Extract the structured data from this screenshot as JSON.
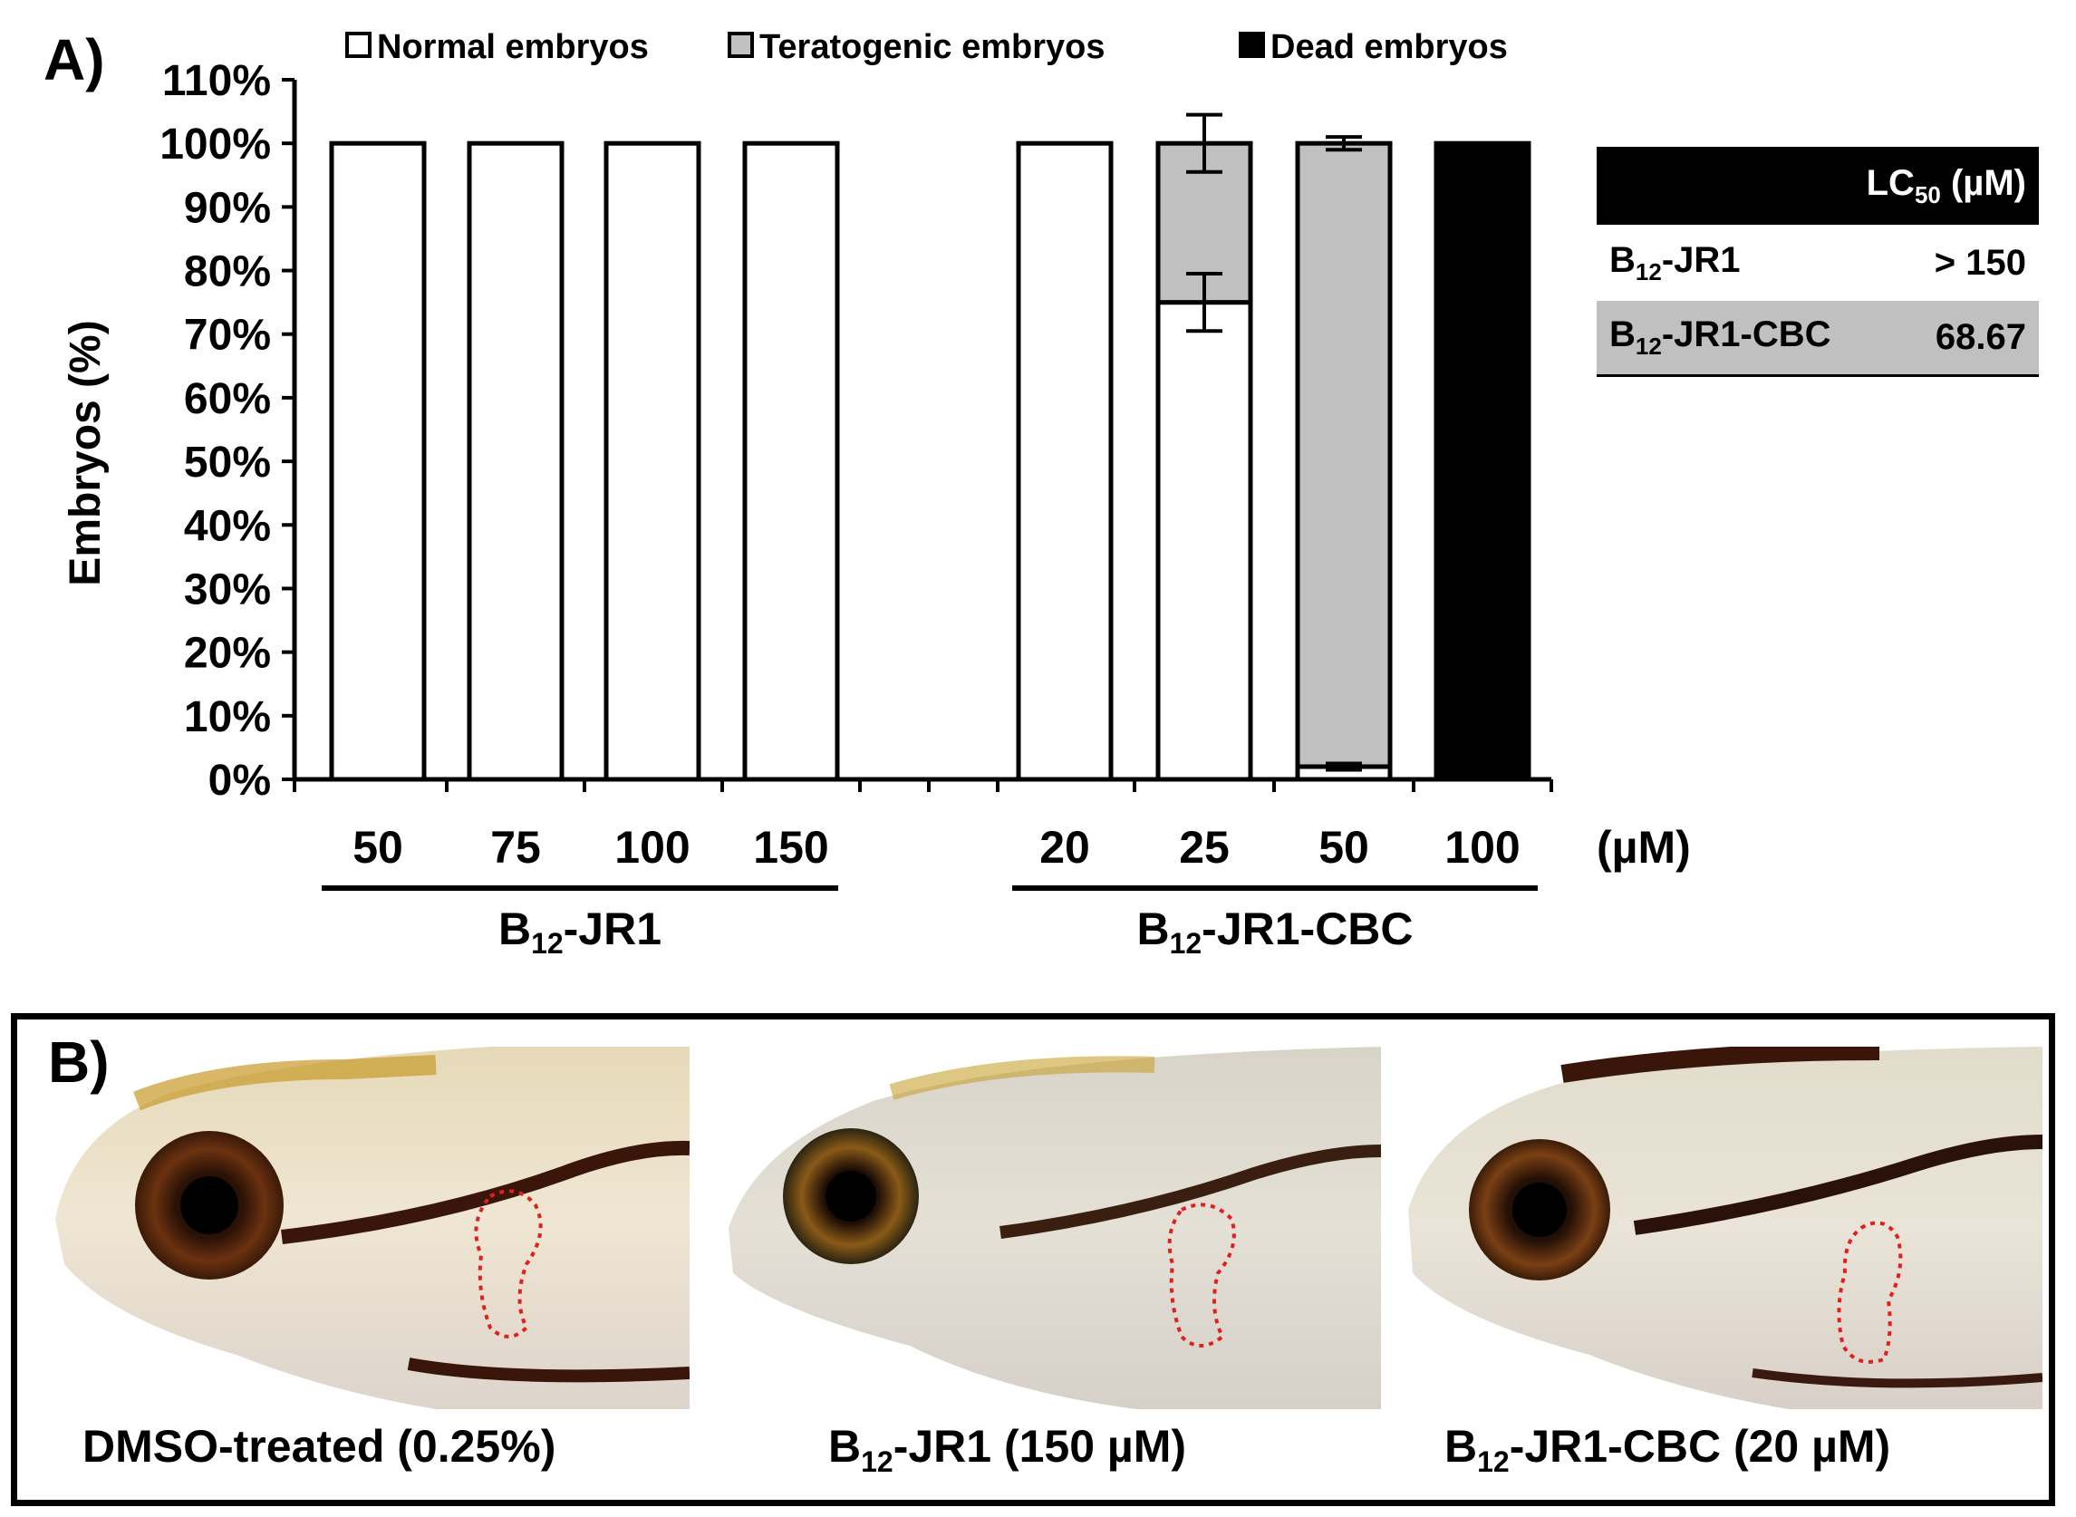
{
  "panel_a": {
    "label": "A)",
    "legend": [
      {
        "label": "Normal embryos",
        "color": "#ffffff"
      },
      {
        "label": "Teratogenic embryos",
        "color": "#c0c0c0"
      },
      {
        "label": "Dead embryos",
        "color": "#000000"
      }
    ],
    "unit_label": "(µM)",
    "group_labels": [
      {
        "base": "B",
        "sub": "12",
        "rest": "-JR1"
      },
      {
        "base": "B",
        "sub": "12",
        "rest": "-JR1-CBC"
      }
    ],
    "lc50_table": {
      "header": {
        "base": "LC",
        "sub": "50",
        "rest": " (µM)"
      },
      "rows": [
        {
          "name": {
            "base": "B",
            "sub": "12",
            "rest": "-JR1"
          },
          "value": "> 150"
        },
        {
          "name": {
            "base": "B",
            "sub": "12",
            "rest": "-JR1-CBC"
          },
          "value": "68.67"
        }
      ]
    }
  },
  "chart_data": {
    "type": "bar",
    "stacked": true,
    "title": "",
    "xlabel": "",
    "ylabel": "Embryos (%)",
    "ylim": [
      0,
      110
    ],
    "yticks": [
      "0%",
      "10%",
      "20%",
      "30%",
      "40%",
      "50%",
      "60%",
      "70%",
      "80%",
      "90%",
      "100%",
      "110%"
    ],
    "categories": [
      "50",
      "75",
      "100",
      "150",
      "20",
      "25",
      "50",
      "100"
    ],
    "groups": [
      "B12-JR1",
      "B12-JR1",
      "B12-JR1",
      "B12-JR1",
      "B12-JR1-CBC",
      "B12-JR1-CBC",
      "B12-JR1-CBC",
      "B12-JR1-CBC"
    ],
    "series": [
      {
        "name": "Normal embryos",
        "color": "#ffffff",
        "values": [
          100,
          100,
          100,
          100,
          100,
          75,
          2,
          0
        ],
        "errors": [
          0,
          0,
          0,
          0,
          0,
          4.5,
          0.5,
          0
        ]
      },
      {
        "name": "Teratogenic embryos",
        "color": "#c0c0c0",
        "values": [
          0,
          0,
          0,
          0,
          0,
          25,
          98,
          0
        ],
        "errors": [
          0,
          0,
          0,
          0,
          0,
          4.5,
          1,
          0
        ]
      },
      {
        "name": "Dead embryos",
        "color": "#000000",
        "values": [
          0,
          0,
          0,
          0,
          0,
          0,
          0,
          100
        ],
        "errors": [
          0,
          0,
          0,
          0,
          0,
          0,
          0,
          0
        ]
      }
    ],
    "legend_position": "top"
  },
  "panel_b": {
    "label": "B)",
    "captions": [
      {
        "base": "DMSO-treated (0.25%)",
        "sub": "",
        "rest": ""
      },
      {
        "base": "B",
        "sub": "12",
        "rest": "-JR1 (150 µM)"
      },
      {
        "base": "B",
        "sub": "12",
        "rest": "-JR1-CBC (20 µM)"
      }
    ]
  }
}
